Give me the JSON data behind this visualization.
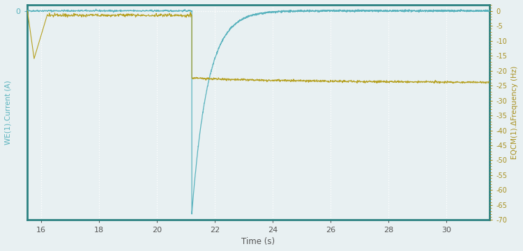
{
  "title": "",
  "xlabel": "Time (s)",
  "ylabel_left": "WE(1).Current (A)",
  "ylabel_right": "EQCM(1).ΔFrequency (Hz)",
  "xlim": [
    15.5,
    31.5
  ],
  "xticks": [
    16,
    18,
    20,
    22,
    24,
    26,
    28,
    30
  ],
  "ylim_left": [
    -70,
    2
  ],
  "ylim_right": [
    -70,
    2
  ],
  "yticks_left": [
    0
  ],
  "yticks_right": [
    0.0,
    -5.0,
    -10.0,
    -15.0,
    -20.0,
    -25.0,
    -30.0,
    -35.0,
    -40.0,
    -45.0,
    -50.0,
    -55.0,
    -60.0,
    -65.0,
    -70.0
  ],
  "step_time": 21.2,
  "blue_color": "#5ab3be",
  "yellow_color": "#b5a020",
  "bg_color": "#e8f0f2",
  "border_color": "#2a8080",
  "grid_color": "#ffffff",
  "label_color_left": "#5ab3be",
  "label_color_right": "#a89020",
  "tick_color": "#555555"
}
